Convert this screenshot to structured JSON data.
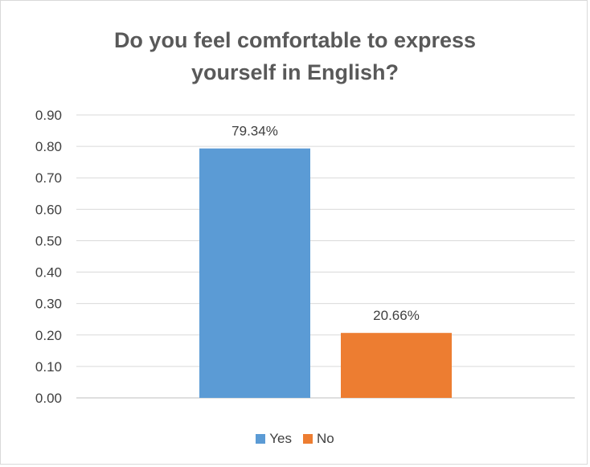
{
  "chart_data": {
    "type": "bar",
    "title_lines": [
      "Do you feel comfortable to express",
      "yourself in English?"
    ],
    "categories": [
      "Yes",
      "No"
    ],
    "values": [
      0.7934,
      0.2066
    ],
    "data_labels": [
      "79.34%",
      "20.66%"
    ],
    "colors": [
      "#5B9BD5",
      "#ED7D31"
    ],
    "ylim": [
      0,
      0.9
    ],
    "yticks": [
      "0.00",
      "0.10",
      "0.20",
      "0.30",
      "0.40",
      "0.50",
      "0.60",
      "0.70",
      "0.80",
      "0.90"
    ],
    "grid": true,
    "legend_position": "bottom",
    "legend": [
      {
        "label": "Yes",
        "color": "#5B9BD5"
      },
      {
        "label": "No",
        "color": "#ED7D31"
      }
    ]
  }
}
